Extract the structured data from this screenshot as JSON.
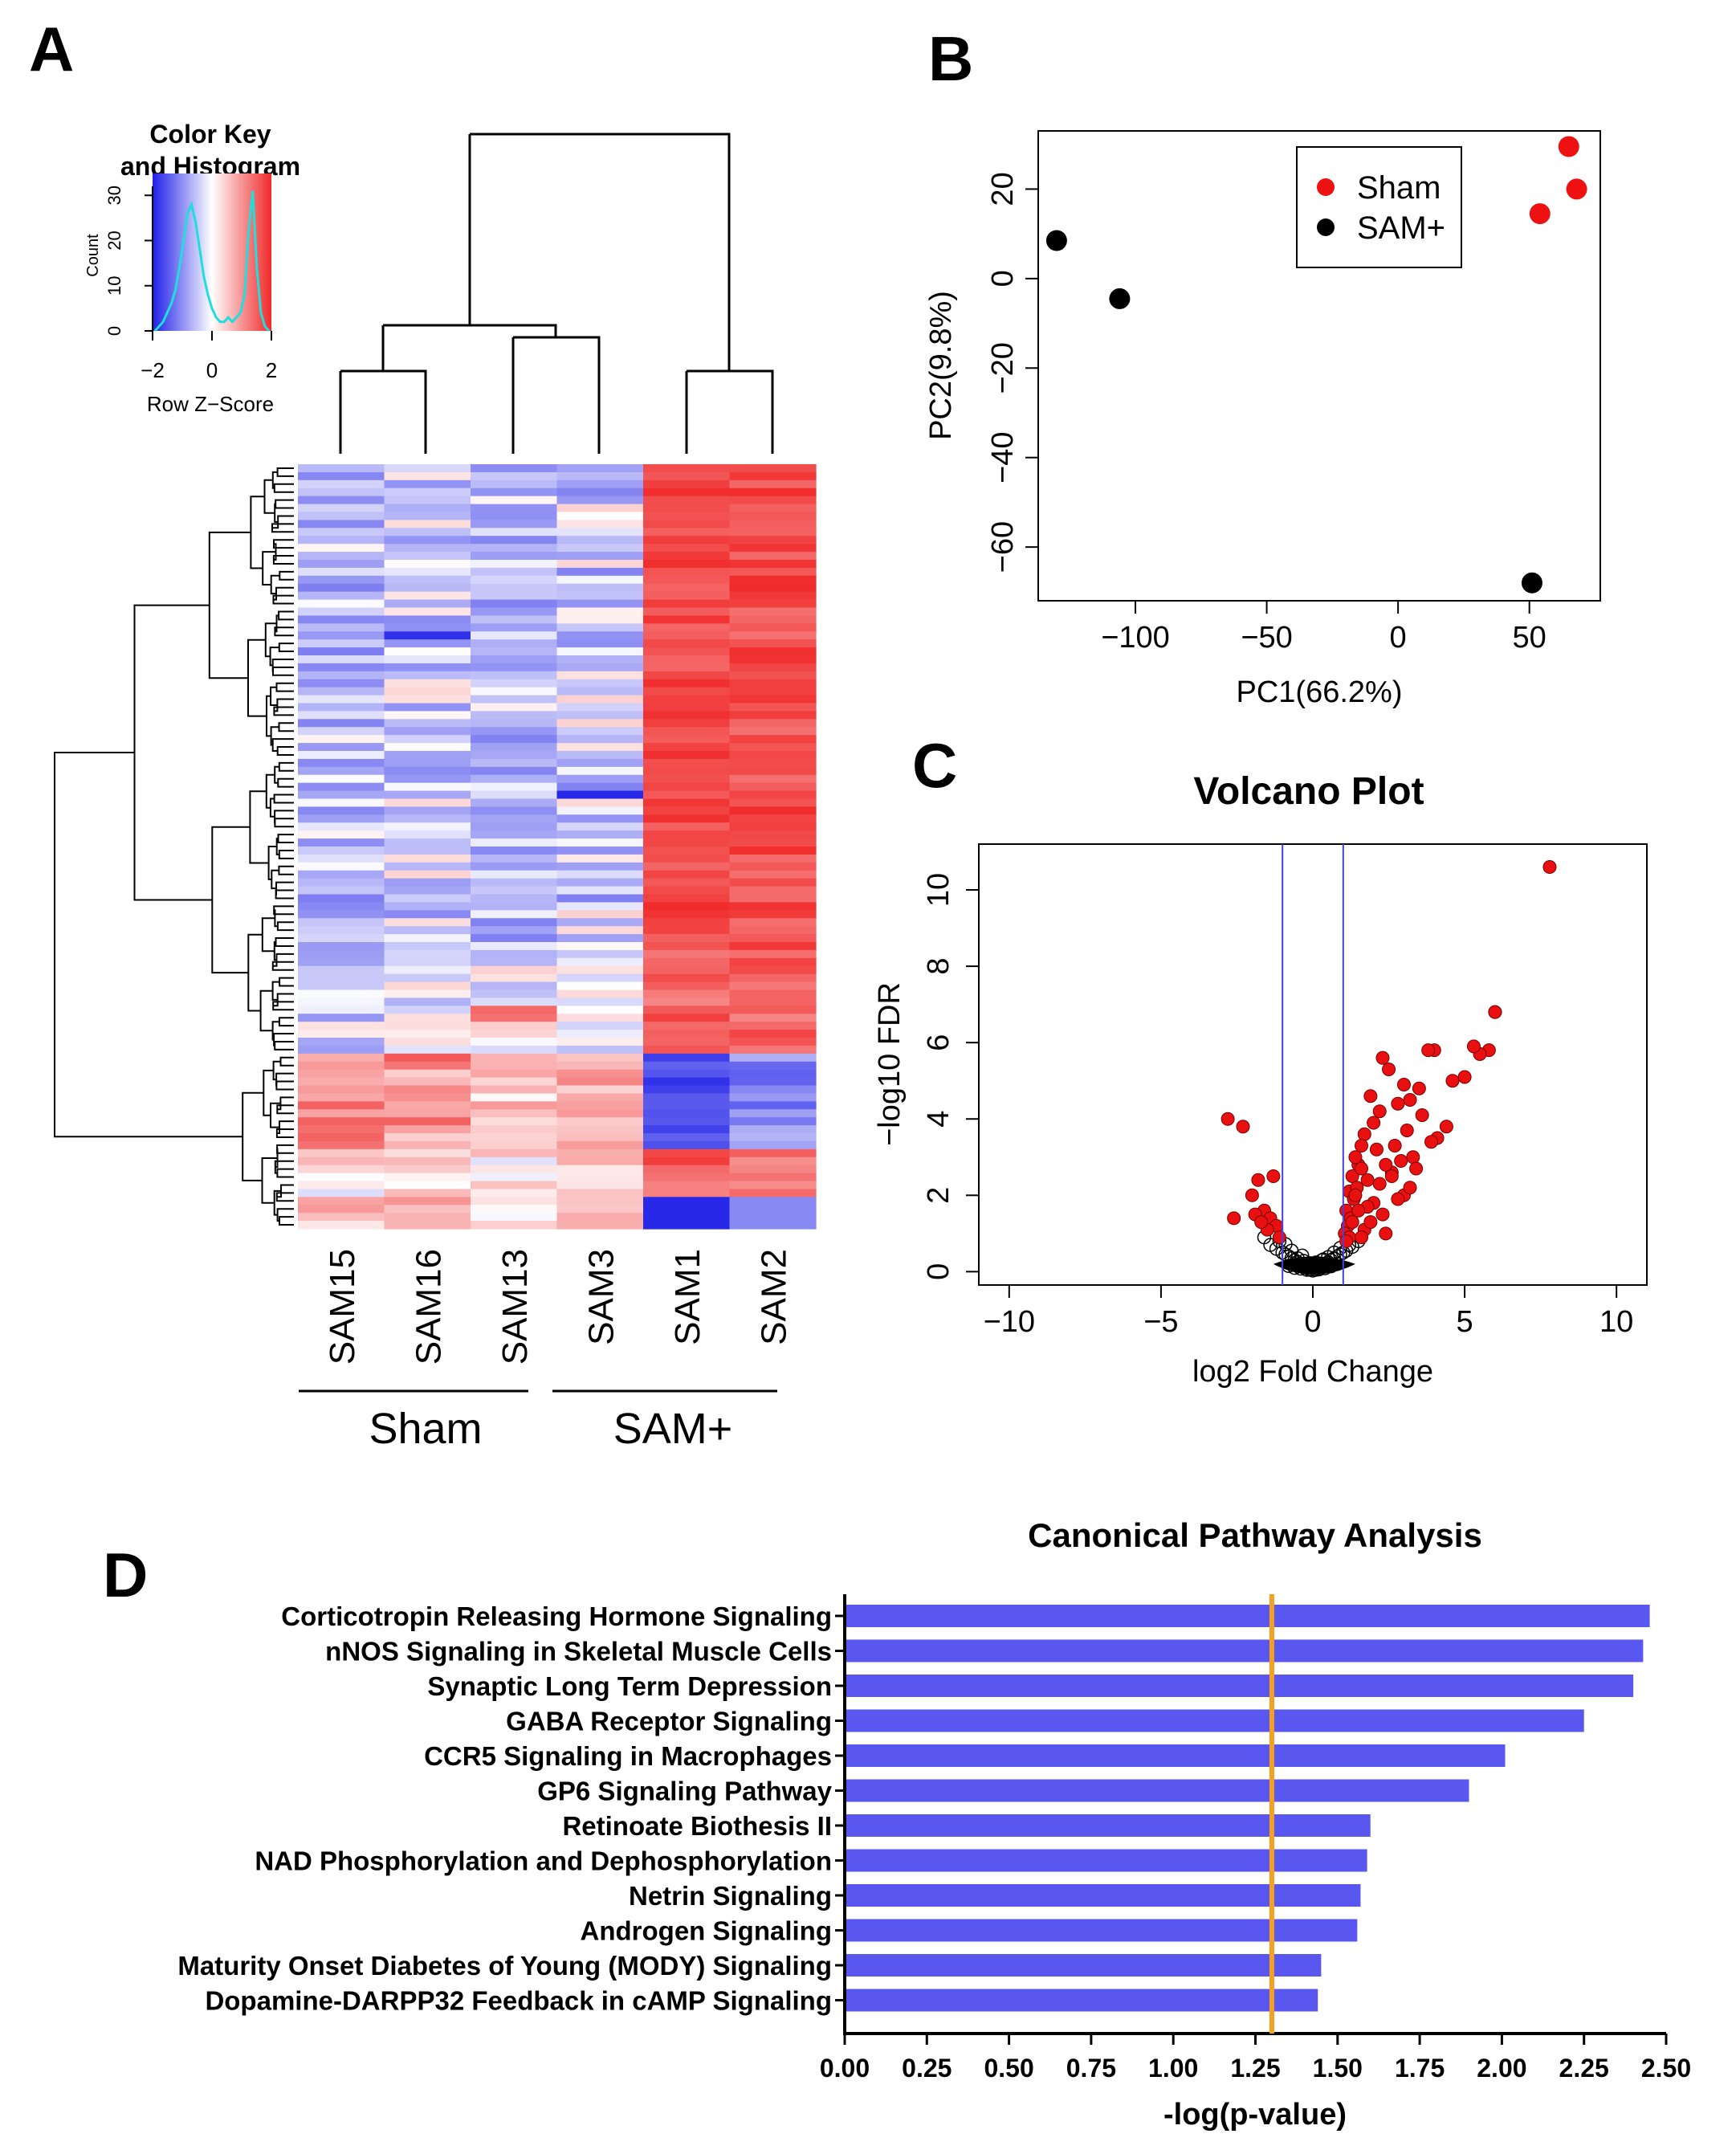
{
  "panels": {
    "a": "A",
    "b": "B",
    "c": "C",
    "d": "D"
  },
  "colors": {
    "heat_low": "#1f1fe8",
    "heat_mid": "#ffffff",
    "heat_high": "#f02a2a",
    "sham_point": "#ee1111",
    "sam_point": "#000000",
    "sig_point": "#e81010",
    "threshold_line": "#4444dd",
    "bar": "#5a57f0",
    "cutoff_line": "#f5a020",
    "histogram": "#22dddd"
  },
  "heatmap": {
    "color_key_title_1": "Color Key",
    "color_key_title_2": "and Histogram",
    "count_label": "Count",
    "count_ticks": [
      "0",
      "10",
      "20",
      "30"
    ],
    "z_ticks": [
      "−2",
      "0",
      "2"
    ],
    "z_label": "Row Z−Score",
    "samples": [
      "SAM15",
      "SAM16",
      "SAM13",
      "SAM3",
      "SAM1",
      "SAM2"
    ],
    "group_sham": "Sham",
    "group_sam": "SAM+",
    "group_size_sham": 3,
    "group_size_sam": 3
  },
  "chart_data": [
    {
      "type": "scatter",
      "panel": "B",
      "title": "",
      "xlabel": "PC1(66.2%)",
      "ylabel": "PC2(9.8%)",
      "xlim": [
        -137,
        77
      ],
      "ylim": [
        -72,
        33
      ],
      "xticks": [
        -100,
        -50,
        0,
        50
      ],
      "yticks": [
        -60,
        -40,
        -20,
        0,
        20
      ],
      "xtick_labels": [
        "−100",
        "−50",
        "0",
        "50"
      ],
      "ytick_labels": [
        "−60",
        "−40",
        "−20",
        "0",
        "20"
      ],
      "legend_position": "top-right",
      "series": [
        {
          "name": "Sham",
          "color": "#ee1111",
          "x": [
            65,
            68,
            54
          ],
          "y": [
            29.5,
            20,
            14.5
          ]
        },
        {
          "name": "SAM+",
          "color": "#000000",
          "x": [
            -130,
            -106,
            51
          ],
          "y": [
            8.5,
            -4.5,
            -68
          ]
        }
      ]
    },
    {
      "type": "scatter",
      "panel": "C",
      "title": "Volcano Plot",
      "xlabel": "log2 Fold Change",
      "ylabel": "−log10 FDR",
      "xlim": [
        -11,
        11
      ],
      "ylim": [
        -0.35,
        11.2
      ],
      "xticks": [
        -10,
        -5,
        0,
        5,
        10
      ],
      "yticks": [
        0,
        2,
        4,
        6,
        8,
        10
      ],
      "xtick_labels": [
        "−10",
        "−5",
        "0",
        "5",
        "10"
      ],
      "ytick_labels": [
        "0",
        "2",
        "4",
        "6",
        "8",
        "10"
      ],
      "thresholds_x": [
        -1,
        1
      ],
      "significant_points": {
        "x": [
          7.8,
          6,
          6,
          5.8,
          5.5,
          5.3,
          5.0,
          4.6,
          4.0,
          3.8,
          3.5,
          3.2,
          3.0,
          2.8,
          2.5,
          2.3,
          2.2,
          2.0,
          1.9,
          1.7,
          1.6,
          1.5,
          1.4,
          1.3,
          1.2,
          1.1,
          4.4,
          4.1,
          3.9,
          3.6,
          3.3,
          3.1,
          2.9,
          2.7,
          2.6,
          2.4,
          2.1,
          1.8,
          1.6,
          1.45,
          1.35,
          1.25,
          1.15,
          1.05,
          2.2,
          2.6,
          3.0,
          3.4,
          2.0,
          1.8,
          1.5,
          1.3,
          1.2,
          1.1,
          1.7,
          2.3,
          2.8,
          3.2,
          1.4,
          1.9,
          2.4,
          1.6,
          -2.8,
          -2.3,
          -2.0,
          -1.8,
          -1.6,
          -1.4,
          -1.3,
          -1.2,
          -1.1,
          -1.5,
          -2.6,
          -1.9,
          -1.7
        ],
        "y": [
          10.6,
          6.8,
          6.8,
          5.8,
          5.7,
          5.9,
          5.1,
          5.0,
          5.8,
          5.8,
          4.8,
          4.5,
          4.9,
          4.4,
          5.3,
          5.6,
          4.2,
          3.9,
          4.6,
          3.6,
          3.3,
          2.8,
          3.0,
          2.5,
          2.1,
          1.6,
          3.8,
          3.5,
          3.4,
          4.1,
          3.0,
          3.7,
          2.9,
          3.3,
          2.6,
          2.8,
          3.2,
          2.4,
          2.7,
          2.2,
          1.9,
          1.4,
          1.2,
          1.0,
          2.3,
          2.5,
          2.0,
          2.7,
          1.8,
          1.7,
          1.6,
          1.3,
          0.9,
          0.8,
          1.1,
          1.5,
          1.9,
          2.2,
          2.0,
          1.3,
          1.0,
          0.9,
          4.0,
          3.8,
          2.0,
          2.4,
          1.6,
          1.4,
          2.5,
          1.2,
          0.9,
          1.1,
          1.4,
          1.5,
          1.3
        ]
      },
      "nonsignificant_points": {
        "x": [
          -1.6,
          -1.4,
          -1.2,
          -1.0,
          -0.9,
          -0.8,
          -0.7,
          -0.6,
          -0.5,
          -0.4,
          -0.3,
          -0.2,
          -0.1,
          0.0,
          0.1,
          0.2,
          0.3,
          0.4,
          0.5,
          0.6,
          0.7,
          0.8,
          0.9,
          1.0,
          1.1,
          1.3,
          1.5,
          -0.8,
          -0.6,
          -0.4,
          -0.2,
          0.0,
          0.2,
          0.4,
          0.6,
          0.8,
          -0.5,
          -0.3,
          -0.1,
          0.1,
          0.3,
          0.5,
          0.7,
          -0.9,
          0.9,
          -1.1,
          1.2,
          -0.7,
          0.65,
          -0.35,
          0.35
        ],
        "y": [
          0.9,
          0.7,
          0.6,
          0.5,
          0.45,
          0.4,
          0.35,
          0.3,
          0.25,
          0.2,
          0.15,
          0.1,
          0.05,
          0.03,
          0.05,
          0.1,
          0.15,
          0.2,
          0.25,
          0.3,
          0.35,
          0.4,
          0.45,
          0.5,
          0.55,
          0.65,
          0.8,
          0.15,
          0.1,
          0.08,
          0.05,
          0.12,
          0.06,
          0.09,
          0.14,
          0.2,
          0.35,
          0.28,
          0.22,
          0.24,
          0.3,
          0.38,
          0.5,
          0.72,
          0.62,
          0.8,
          0.7,
          0.55,
          0.18,
          0.42,
          0.32
        ]
      }
    },
    {
      "type": "bar",
      "panel": "D",
      "orientation": "horizontal",
      "title": "Canonical Pathway Analysis",
      "xlabel": "-log(p-value)",
      "ylabel": "",
      "xlim": [
        0,
        2.5
      ],
      "xticks": [
        0,
        0.25,
        0.5,
        0.75,
        1.0,
        1.25,
        1.5,
        1.75,
        2.0,
        2.25,
        2.5
      ],
      "xtick_labels": [
        "0.00",
        "0.25",
        "0.50",
        "0.75",
        "1.00",
        "1.25",
        "1.50",
        "1.75",
        "2.00",
        "2.25",
        "2.50"
      ],
      "threshold": 1.3,
      "categories": [
        "Corticotropin Releasing Hormone Signaling",
        "nNOS Signaling in Skeletal Muscle Cells",
        "Synaptic Long Term Depression",
        "GABA Receptor Signaling",
        "CCR5 Signaling in Macrophages",
        "GP6 Signaling Pathway",
        "Retinoate Biothesis II",
        "NAD Phosphorylation and Dephosphorylation",
        "Netrin Signaling",
        "Androgen Signaling",
        "Maturity Onset Diabetes of Young (MODY) Signaling",
        "Dopamine-DARPP32 Feedback in cAMP Signaling"
      ],
      "values": [
        2.45,
        2.43,
        2.4,
        2.25,
        2.01,
        1.9,
        1.6,
        1.59,
        1.57,
        1.56,
        1.45,
        1.44
      ]
    }
  ]
}
